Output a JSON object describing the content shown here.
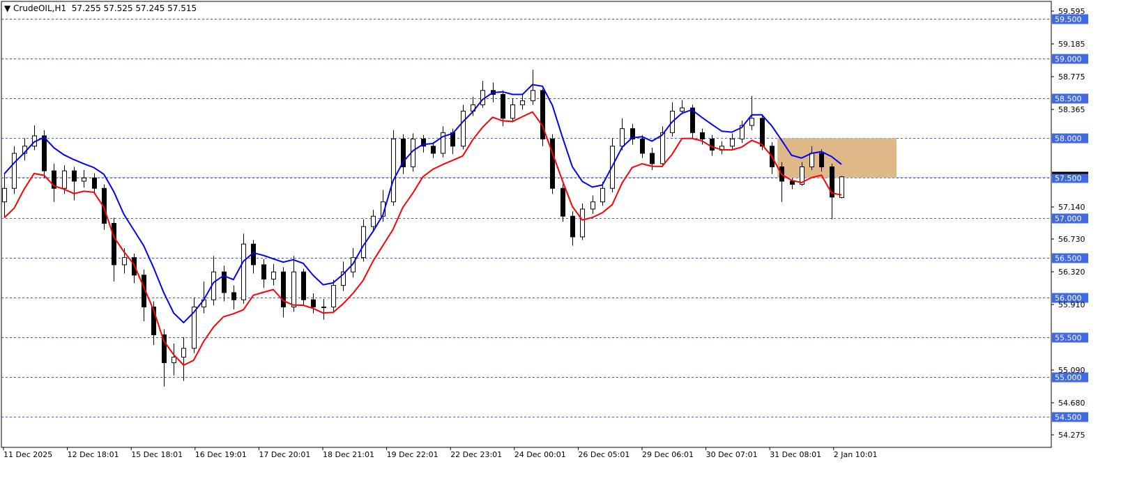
{
  "header": {
    "symbol": "CrudeOIL,H1",
    "ohlc": "57.255 57.525 57.245 57.515"
  },
  "colors": {
    "ma_high": "#0000ff",
    "ma_low": "#ff0000",
    "grid": "#3a5fd9",
    "label_bg": "#4169e1",
    "zone": "#deb887",
    "candle": "#000000"
  },
  "chart_data": {
    "type": "candlestick",
    "instrument": "CrudeOIL",
    "timeframe": "H1",
    "ylim": [
      54.18,
      59.63
    ],
    "grid": true,
    "price_levels": [
      59.5,
      59.0,
      58.5,
      58.0,
      57.5,
      57.0,
      56.5,
      56.0,
      55.5,
      55.0,
      54.5
    ],
    "price_level_labels": [
      "59.500",
      "59.000",
      "58.500",
      "58.000",
      "57.500",
      "57.000",
      "56.500",
      "56.000",
      "55.500",
      "55.000",
      "54.500"
    ],
    "y_tick_labels": [
      "59.595",
      "59.185",
      "58.775",
      "58.365",
      "57.140",
      "56.730",
      "56.320",
      "55.910",
      "55.090",
      "54.680",
      "54.275"
    ],
    "x_tick_labels": [
      "11 Dec 2025",
      "12 Dec 18:01",
      "15 Dec 18:01",
      "16 Dec 19:01",
      "17 Dec 20:01",
      "18 Dec 21:01",
      "19 Dec 22:01",
      "22 Dec 23:01",
      "24 Dec 00:01",
      "26 Dec 05:01",
      "29 Dec 06:01",
      "30 Dec 07:01",
      "31 Dec 08:01",
      "2 Jan 10:01"
    ],
    "current_price": 57.515,
    "zone": {
      "from_price": 57.5,
      "to_price": 58.0,
      "start_candle": 78
    },
    "indicators": [
      {
        "type": "moving-average",
        "source": "high",
        "color": "blue"
      },
      {
        "type": "moving-average",
        "source": "low",
        "color": "red"
      }
    ],
    "candles": [
      [
        57.2,
        57.55,
        57.0,
        57.37
      ],
      [
        57.37,
        57.9,
        57.3,
        57.81
      ],
      [
        57.81,
        58.0,
        57.72,
        57.9
      ],
      [
        57.9,
        58.16,
        57.85,
        58.03
      ],
      [
        58.03,
        58.1,
        57.5,
        57.59
      ],
      [
        57.59,
        57.68,
        57.2,
        57.37
      ],
      [
        57.37,
        57.66,
        57.3,
        57.59
      ],
      [
        57.59,
        57.64,
        57.22,
        57.46
      ],
      [
        57.46,
        57.6,
        57.38,
        57.5
      ],
      [
        57.5,
        57.56,
        57.3,
        57.37
      ],
      [
        57.37,
        57.42,
        56.85,
        56.93
      ],
      [
        56.93,
        57.0,
        56.2,
        56.41
      ],
      [
        56.41,
        56.62,
        56.3,
        56.5
      ],
      [
        56.5,
        56.55,
        56.18,
        56.28
      ],
      [
        56.28,
        56.35,
        55.7,
        55.88
      ],
      [
        55.88,
        55.95,
        55.4,
        55.53
      ],
      [
        55.53,
        55.6,
        54.88,
        55.18
      ],
      [
        55.18,
        55.42,
        55.02,
        55.25
      ],
      [
        55.25,
        55.5,
        54.95,
        55.36
      ],
      [
        55.36,
        56.0,
        55.3,
        55.88
      ],
      [
        55.88,
        56.2,
        55.8,
        55.97
      ],
      [
        55.97,
        56.52,
        55.9,
        56.32
      ],
      [
        56.32,
        56.4,
        55.95,
        56.06
      ],
      [
        56.06,
        56.15,
        55.85,
        55.97
      ],
      [
        55.97,
        56.8,
        55.92,
        56.67
      ],
      [
        56.67,
        56.72,
        56.3,
        56.41
      ],
      [
        56.41,
        56.48,
        56.12,
        56.23
      ],
      [
        56.23,
        56.42,
        56.15,
        56.32
      ],
      [
        56.32,
        56.38,
        55.75,
        55.88
      ],
      [
        55.88,
        56.52,
        55.82,
        56.32
      ],
      [
        56.32,
        56.36,
        55.9,
        55.97
      ],
      [
        55.97,
        56.05,
        55.8,
        55.88
      ],
      [
        55.88,
        55.98,
        55.72,
        55.88
      ],
      [
        55.88,
        56.22,
        55.82,
        56.15
      ],
      [
        56.15,
        56.45,
        56.08,
        56.32
      ],
      [
        56.32,
        56.62,
        56.25,
        56.5
      ],
      [
        56.5,
        56.98,
        56.45,
        56.89
      ],
      [
        56.89,
        57.1,
        56.82,
        57.02
      ],
      [
        57.02,
        57.35,
        56.95,
        57.2
      ],
      [
        57.2,
        58.1,
        57.15,
        57.99
      ],
      [
        57.99,
        58.05,
        57.55,
        57.64
      ],
      [
        57.64,
        58.06,
        57.58,
        57.99
      ],
      [
        57.99,
        58.04,
        57.82,
        57.9
      ],
      [
        57.9,
        57.95,
        57.75,
        57.81
      ],
      [
        57.81,
        58.15,
        57.76,
        58.07
      ],
      [
        58.07,
        58.12,
        57.8,
        57.9
      ],
      [
        57.9,
        58.42,
        57.86,
        58.34
      ],
      [
        58.34,
        58.52,
        58.28,
        58.42
      ],
      [
        58.42,
        58.72,
        58.38,
        58.6
      ],
      [
        58.6,
        58.7,
        58.45,
        58.55
      ],
      [
        58.55,
        58.6,
        58.15,
        58.25
      ],
      [
        58.25,
        58.5,
        58.2,
        58.42
      ],
      [
        58.42,
        58.55,
        58.36,
        58.47
      ],
      [
        58.47,
        58.86,
        58.42,
        58.6
      ],
      [
        58.6,
        58.62,
        57.9,
        57.99
      ],
      [
        57.99,
        58.05,
        57.3,
        57.37
      ],
      [
        57.37,
        57.42,
        56.95,
        57.02
      ],
      [
        57.02,
        57.08,
        56.65,
        56.76
      ],
      [
        56.76,
        57.18,
        56.72,
        57.11
      ],
      [
        57.11,
        57.28,
        57.05,
        57.2
      ],
      [
        57.2,
        57.45,
        57.15,
        57.37
      ],
      [
        57.37,
        58.0,
        57.32,
        57.9
      ],
      [
        57.9,
        58.25,
        57.85,
        58.12
      ],
      [
        58.12,
        58.18,
        57.92,
        57.99
      ],
      [
        57.99,
        58.04,
        57.75,
        57.81
      ],
      [
        57.81,
        57.88,
        57.6,
        57.68
      ],
      [
        57.68,
        58.15,
        57.64,
        58.07
      ],
      [
        58.07,
        58.45,
        58.02,
        58.34
      ],
      [
        58.34,
        58.48,
        58.3,
        58.38
      ],
      [
        58.38,
        58.42,
        58.0,
        58.07
      ],
      [
        58.07,
        58.12,
        57.92,
        57.99
      ],
      [
        57.99,
        58.04,
        57.78,
        57.85
      ],
      [
        57.85,
        57.96,
        57.8,
        57.9
      ],
      [
        57.9,
        58.06,
        57.85,
        57.99
      ],
      [
        57.99,
        58.22,
        57.94,
        58.16
      ],
      [
        58.16,
        58.53,
        58.1,
        58.25
      ],
      [
        58.25,
        58.3,
        57.85,
        57.9
      ],
      [
        57.9,
        57.95,
        57.55,
        57.64
      ],
      [
        57.64,
        57.7,
        57.2,
        57.46
      ],
      [
        57.46,
        57.5,
        57.36,
        57.42
      ],
      [
        57.42,
        57.7,
        57.4,
        57.64
      ],
      [
        57.64,
        57.9,
        57.6,
        57.81
      ],
      [
        57.81,
        57.86,
        57.58,
        57.64
      ],
      [
        57.64,
        57.68,
        56.98,
        57.26
      ],
      [
        57.255,
        57.525,
        57.245,
        57.515
      ]
    ]
  }
}
